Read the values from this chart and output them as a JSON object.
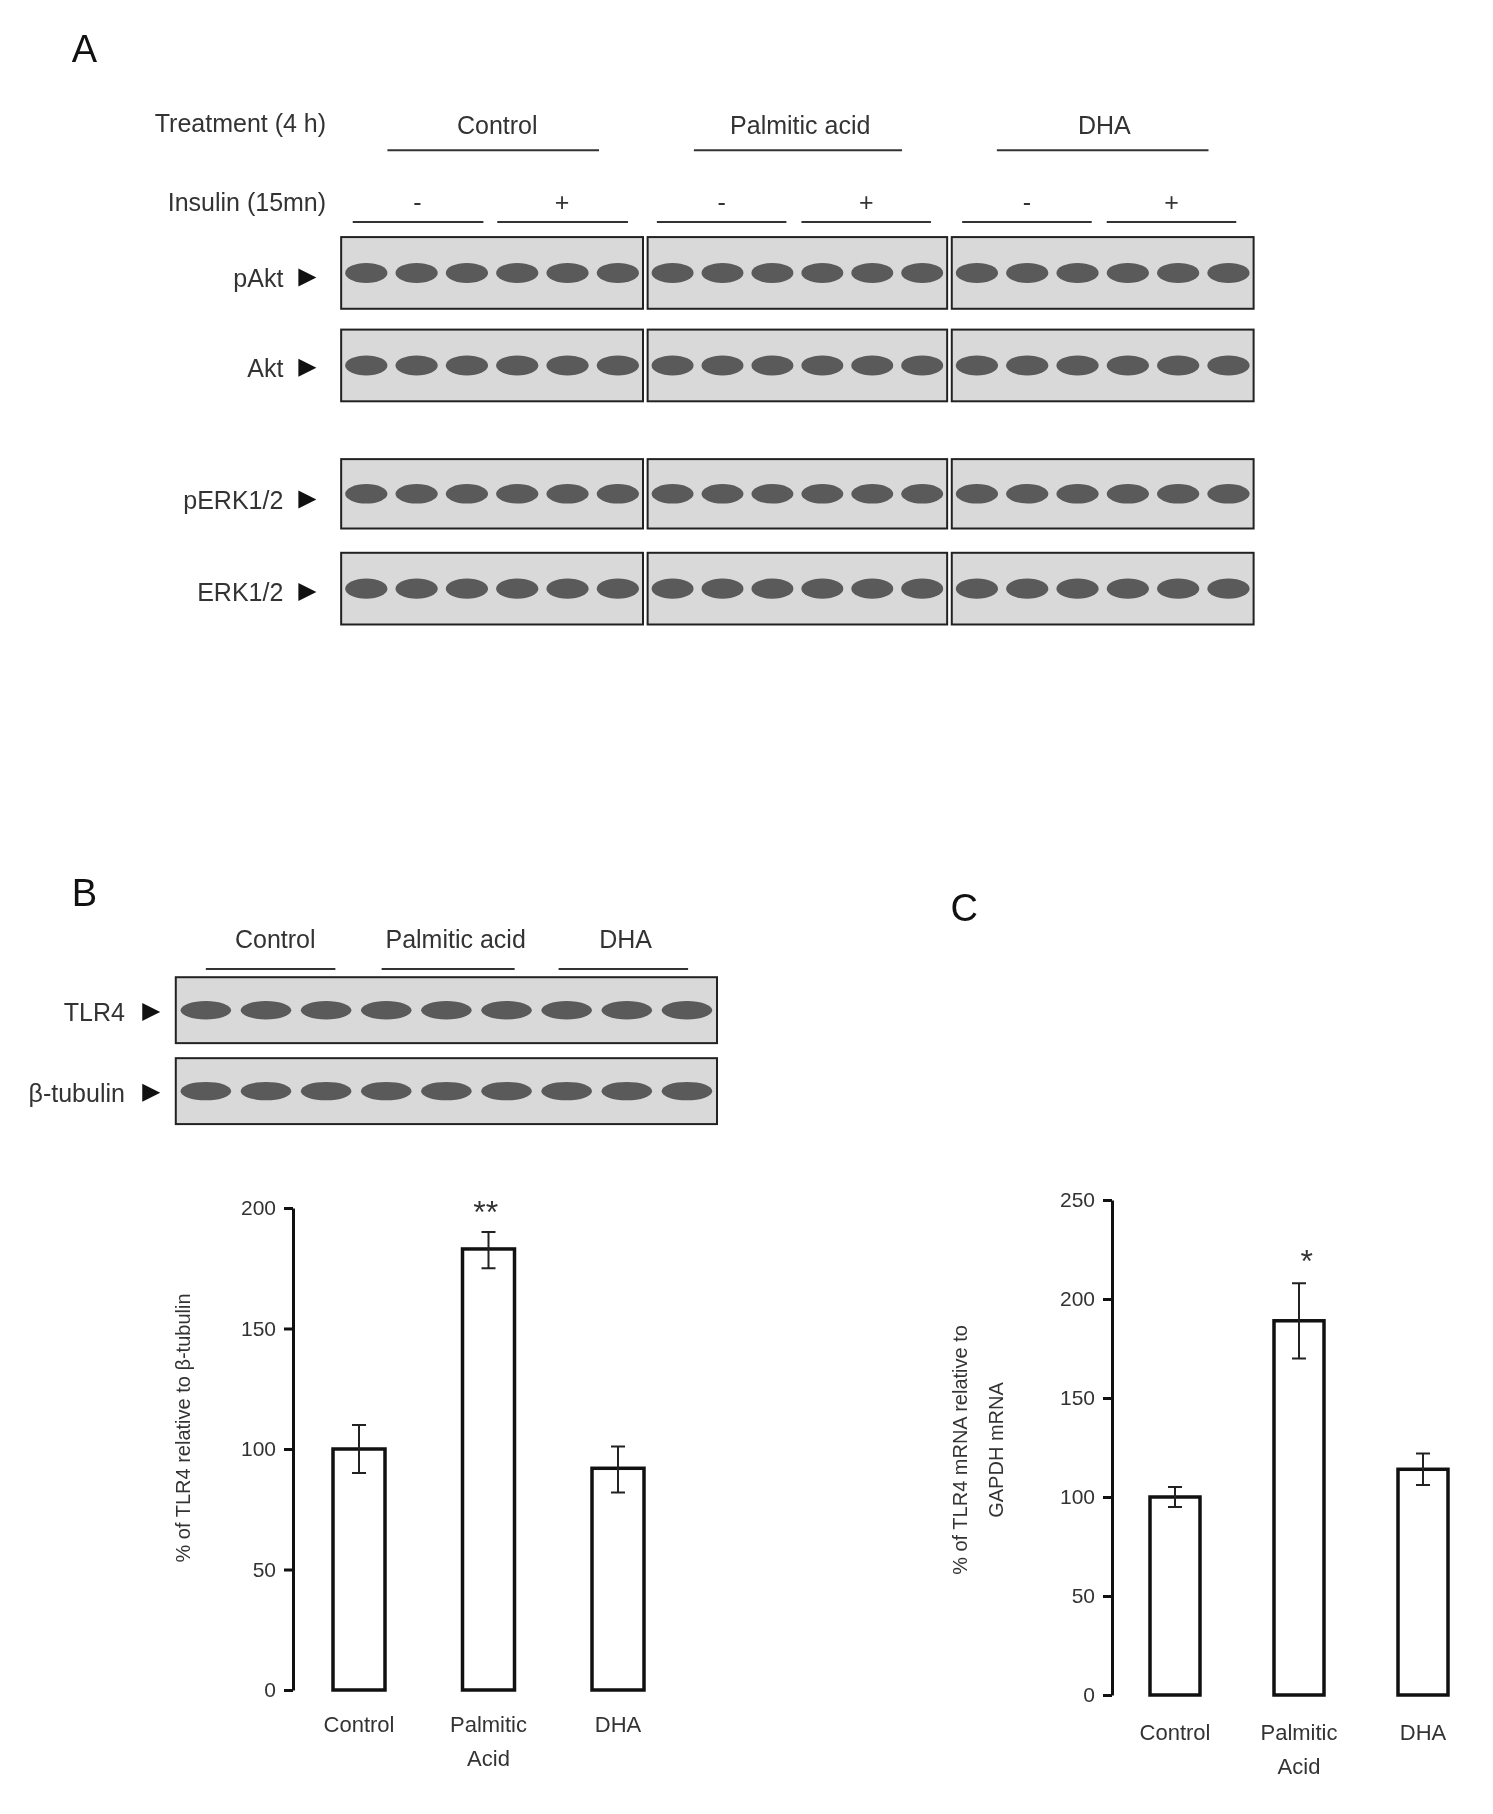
{
  "chart_data": [
    {
      "type": "other",
      "title": "A",
      "annotations": [
        "Treatment (4  h)",
        "Insulin (15mn)",
        "Control",
        "Palmitic acid",
        "DHA",
        "-",
        "+",
        "-",
        "+",
        "-",
        "+",
        "pAkt",
        "Akt",
        "pERK1/2",
        "ERK1/2"
      ]
    },
    {
      "type": "bar",
      "title": "B",
      "ylabel": "% of TLR4 relative to β-tubulin",
      "categories": [
        "Control",
        "Palmitic Acid",
        "DHA"
      ],
      "values": [
        100,
        183,
        92
      ],
      "errors": [
        10,
        [
          175,
          190
        ],
        [
          82,
          101
        ]
      ],
      "color": "#ffffff",
      "ylim": [
        0,
        200
      ],
      "yticks": [
        0,
        50,
        100,
        150,
        200
      ],
      "annotations": [
        "**",
        "Control",
        "Palmitic acid",
        "DHA",
        "TLR4",
        "β-tubulin"
      ]
    },
    {
      "type": "bar",
      "title": "C",
      "ylabel": "% of TLR4 mRNA relative to GAPDH mRNA",
      "categories": [
        "Control",
        "Palmitic Acid",
        "DHA"
      ],
      "values": [
        100,
        189,
        114
      ],
      "errors": [
        5,
        [
          170,
          208
        ],
        8
      ],
      "color": "#ffffff",
      "ylim": [
        0,
        250
      ],
      "yticks": [
        0,
        50,
        100,
        150,
        200,
        250
      ],
      "annotations": [
        "*"
      ]
    }
  ]
}
